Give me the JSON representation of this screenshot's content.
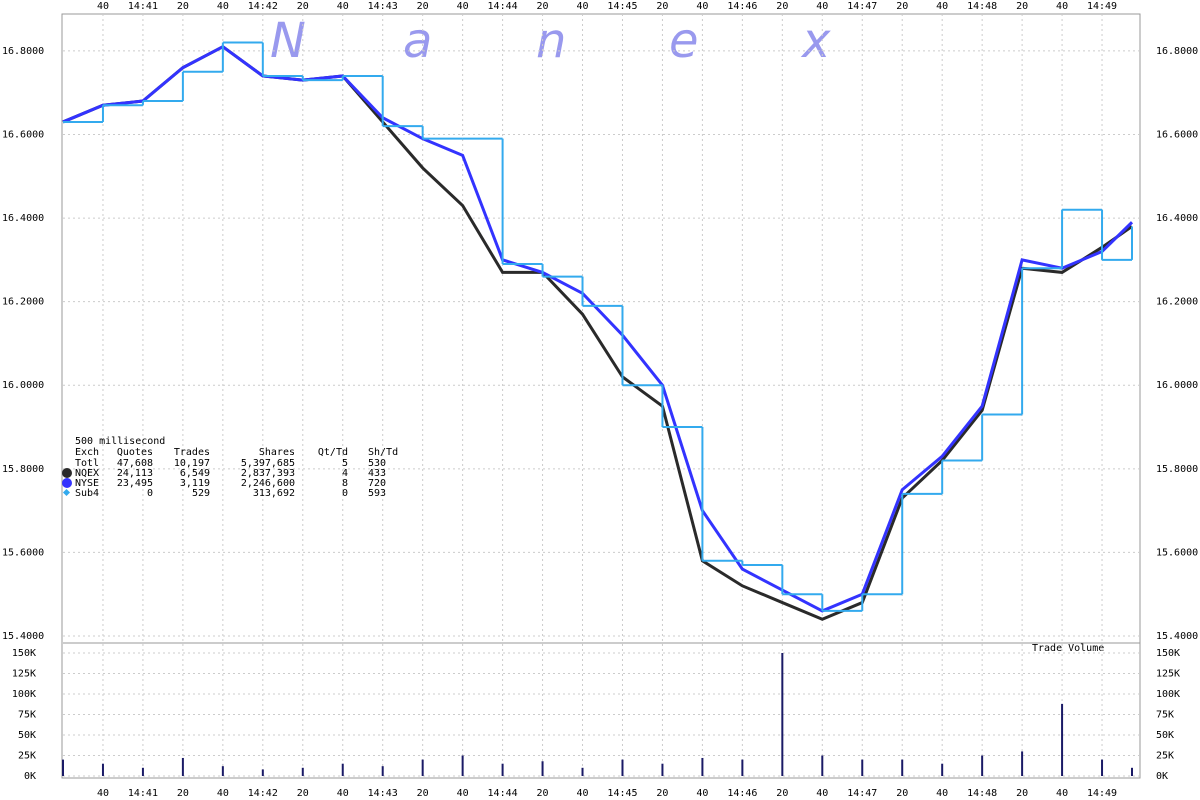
{
  "chart_data": {
    "type": "line",
    "watermark": [
      "N",
      "a",
      "n",
      "e",
      "x"
    ],
    "x": [
      "14:40:20",
      "14:40:40",
      "14:41:00",
      "14:41:20",
      "14:41:40",
      "14:42:00",
      "14:42:20",
      "14:42:40",
      "14:43:00",
      "14:43:20",
      "14:43:40",
      "14:44:00",
      "14:44:20",
      "14:44:40",
      "14:45:00",
      "14:45:20",
      "14:45:40",
      "14:46:00",
      "14:46:20",
      "14:46:40",
      "14:47:00",
      "14:47:20",
      "14:47:40",
      "14:48:00",
      "14:48:20",
      "14:48:40",
      "14:49:00",
      "14:49:15"
    ],
    "xlim": [
      "14:40:20",
      "14:49:19"
    ],
    "xticks": [
      {
        "value": "14:40:40",
        "label": "40"
      },
      {
        "value": "14:41:00",
        "label": "14:41"
      },
      {
        "value": "14:41:20",
        "label": "20"
      },
      {
        "value": "14:41:40",
        "label": "40"
      },
      {
        "value": "14:42:00",
        "label": "14:42"
      },
      {
        "value": "14:42:20",
        "label": "20"
      },
      {
        "value": "14:42:40",
        "label": "40"
      },
      {
        "value": "14:43:00",
        "label": "14:43"
      },
      {
        "value": "14:43:20",
        "label": "20"
      },
      {
        "value": "14:43:40",
        "label": "40"
      },
      {
        "value": "14:44:00",
        "label": "14:44"
      },
      {
        "value": "14:44:20",
        "label": "20"
      },
      {
        "value": "14:44:40",
        "label": "40"
      },
      {
        "value": "14:45:00",
        "label": "14:45"
      },
      {
        "value": "14:45:20",
        "label": "20"
      },
      {
        "value": "14:45:40",
        "label": "40"
      },
      {
        "value": "14:46:00",
        "label": "14:46"
      },
      {
        "value": "14:46:20",
        "label": "20"
      },
      {
        "value": "14:46:40",
        "label": "40"
      },
      {
        "value": "14:47:00",
        "label": "14:47"
      },
      {
        "value": "14:47:20",
        "label": "20"
      },
      {
        "value": "14:47:40",
        "label": "40"
      },
      {
        "value": "14:48:00",
        "label": "14:48"
      },
      {
        "value": "14:48:20",
        "label": "20"
      },
      {
        "value": "14:48:40",
        "label": "40"
      },
      {
        "value": "14:49:00",
        "label": "14:49"
      }
    ],
    "ylim": [
      15.4,
      16.85
    ],
    "yticks": [
      {
        "value": 15.4,
        "label": "15.4000"
      },
      {
        "value": 15.6,
        "label": "15.6000"
      },
      {
        "value": 15.8,
        "label": "15.8000"
      },
      {
        "value": 16.0,
        "label": "16.0000"
      },
      {
        "value": 16.2,
        "label": "16.2000"
      },
      {
        "value": 16.4,
        "label": "16.4000"
      },
      {
        "value": 16.6,
        "label": "16.6000"
      },
      {
        "value": 16.8,
        "label": "16.8000"
      }
    ],
    "grid": true,
    "series": [
      {
        "name": "NQEX",
        "color": "#2a2a2a",
        "style": "line",
        "values": [
          16.63,
          16.67,
          16.68,
          16.76,
          16.81,
          16.74,
          16.73,
          16.74,
          16.63,
          16.52,
          16.43,
          16.27,
          16.27,
          16.17,
          16.02,
          15.95,
          15.58,
          15.52,
          15.48,
          15.44,
          15.48,
          15.73,
          15.82,
          15.94,
          16.28,
          16.27,
          16.33,
          16.38
        ]
      },
      {
        "name": "NYSE",
        "color": "#3333ff",
        "style": "line",
        "values": [
          16.63,
          16.67,
          16.68,
          16.76,
          16.81,
          16.74,
          16.73,
          16.74,
          16.64,
          16.59,
          16.55,
          16.3,
          16.27,
          16.22,
          16.12,
          16.0,
          15.7,
          15.56,
          15.51,
          15.46,
          15.5,
          15.75,
          15.83,
          15.95,
          16.3,
          16.28,
          16.32,
          16.39
        ]
      },
      {
        "name": "Sub4",
        "color": "#33aaee",
        "style": "step",
        "values": [
          16.63,
          16.67,
          16.68,
          16.75,
          16.82,
          16.74,
          16.73,
          16.74,
          16.62,
          16.59,
          16.59,
          16.29,
          16.26,
          16.19,
          16.0,
          15.9,
          15.58,
          15.57,
          15.5,
          15.46,
          15.5,
          15.74,
          15.82,
          15.93,
          16.28,
          16.42,
          16.3,
          16.38
        ]
      }
    ],
    "volume": {
      "title": "Trade Volume",
      "color": "#1a1a66",
      "values": [
        20000,
        15000,
        10000,
        22000,
        12000,
        8000,
        10000,
        15000,
        12000,
        20000,
        25000,
        15000,
        18000,
        10000,
        20000,
        15000,
        22000,
        20000,
        150000,
        25000,
        20000,
        20000,
        15000,
        25000,
        30000,
        88000,
        20000,
        10000
      ],
      "ylim": [
        0,
        150000
      ],
      "yticks": [
        {
          "value": 0,
          "label": "0K"
        },
        {
          "value": 25000,
          "label": "25K"
        },
        {
          "value": 50000,
          "label": "50K"
        },
        {
          "value": 75000,
          "label": "75K"
        },
        {
          "value": 100000,
          "label": "100K"
        },
        {
          "value": 125000,
          "label": "125K"
        },
        {
          "value": 150000,
          "label": "150K"
        }
      ]
    },
    "stats": {
      "title": "500 millisecond",
      "header": [
        "Exch",
        "Quotes",
        "Trades",
        "Shares",
        "Qt/Td",
        "Sh/Td"
      ],
      "rows": [
        [
          "Totl",
          "47,608",
          "10,197",
          "5,397,685",
          "5",
          "530"
        ],
        [
          "NQEX",
          "24,113",
          "6,549",
          "2,837,393",
          "4",
          "433"
        ],
        [
          "NYSE",
          "23,495",
          "3,119",
          "2,246,600",
          "8",
          "720"
        ],
        [
          "Sub4",
          "0",
          "529",
          "313,692",
          "0",
          "593"
        ]
      ]
    }
  }
}
